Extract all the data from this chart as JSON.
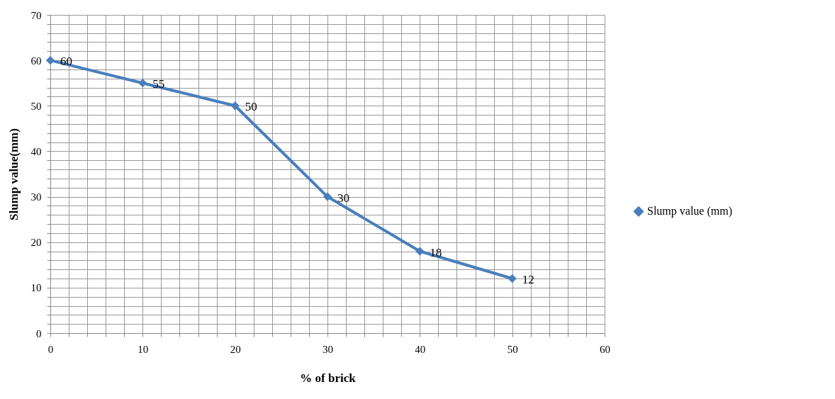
{
  "chart_data": {
    "type": "line",
    "xlabel": "% of brick",
    "ylabel": "Slump value(mm)",
    "x": [
      0,
      10,
      20,
      30,
      40,
      50
    ],
    "series": [
      {
        "name": "Slump value (mm)",
        "color": "#4a7ebb",
        "values": [
          60,
          55,
          50,
          30,
          18,
          12
        ]
      }
    ],
    "xlim": [
      0,
      60
    ],
    "ylim": [
      0,
      70
    ],
    "xticks": [
      0,
      {
        "value": 2,
        "label": null
      },
      {
        "value": 4,
        "label": null
      },
      {
        "value": 6,
        "label": null
      },
      {
        "value": 8,
        "label": null
      },
      10,
      {
        "value": 12,
        "label": null
      },
      {
        "value": 14,
        "label": null
      },
      {
        "value": 16,
        "label": null
      },
      {
        "value": 18,
        "label": null
      },
      20,
      {
        "value": 22,
        "label": null
      },
      {
        "value": 24,
        "label": null
      },
      {
        "value": 26,
        "label": null
      },
      {
        "value": 28,
        "label": null
      },
      30,
      {
        "value": 32,
        "label": null
      },
      {
        "value": 34,
        "label": null
      },
      {
        "value": 36,
        "label": null
      },
      {
        "value": 38,
        "label": null
      },
      40,
      {
        "value": 42,
        "label": null
      },
      {
        "value": 44,
        "label": null
      },
      {
        "value": 46,
        "label": null
      },
      {
        "value": 48,
        "label": null
      },
      50,
      {
        "value": 52,
        "label": null
      },
      {
        "value": 54,
        "label": null
      },
      {
        "value": 56,
        "label": null
      },
      {
        "value": 58,
        "label": null
      },
      60
    ],
    "yticks": [
      0,
      {
        "value": 2,
        "label": null
      },
      {
        "value": 4,
        "label": null
      },
      {
        "value": 6,
        "label": null
      },
      {
        "value": 8,
        "label": null
      },
      10,
      {
        "value": 12,
        "label": null
      },
      {
        "value": 14,
        "label": null
      },
      {
        "value": 16,
        "label": null
      },
      {
        "value": 18,
        "label": null
      },
      20,
      {
        "value": 22,
        "label": null
      },
      {
        "value": 24,
        "label": null
      },
      {
        "value": 26,
        "label": null
      },
      {
        "value": 28,
        "label": null
      },
      30,
      {
        "value": 32,
        "label": null
      },
      {
        "value": 34,
        "label": null
      },
      {
        "value": 36,
        "label": null
      },
      {
        "value": 38,
        "label": null
      },
      40,
      {
        "value": 42,
        "label": null
      },
      {
        "value": 44,
        "label": null
      },
      {
        "value": 46,
        "label": null
      },
      {
        "value": 48,
        "label": null
      },
      50,
      {
        "value": 52,
        "label": null
      },
      {
        "value": 54,
        "label": null
      },
      {
        "value": 56,
        "label": null
      },
      {
        "value": 58,
        "label": null
      },
      60,
      {
        "value": 62,
        "label": null
      },
      {
        "value": 64,
        "label": null
      },
      {
        "value": 66,
        "label": null
      },
      {
        "value": 68,
        "label": null
      },
      70
    ],
    "grid": true,
    "legend": "right",
    "marker": "diamond",
    "line_style": "solid",
    "data_labels": true
  }
}
